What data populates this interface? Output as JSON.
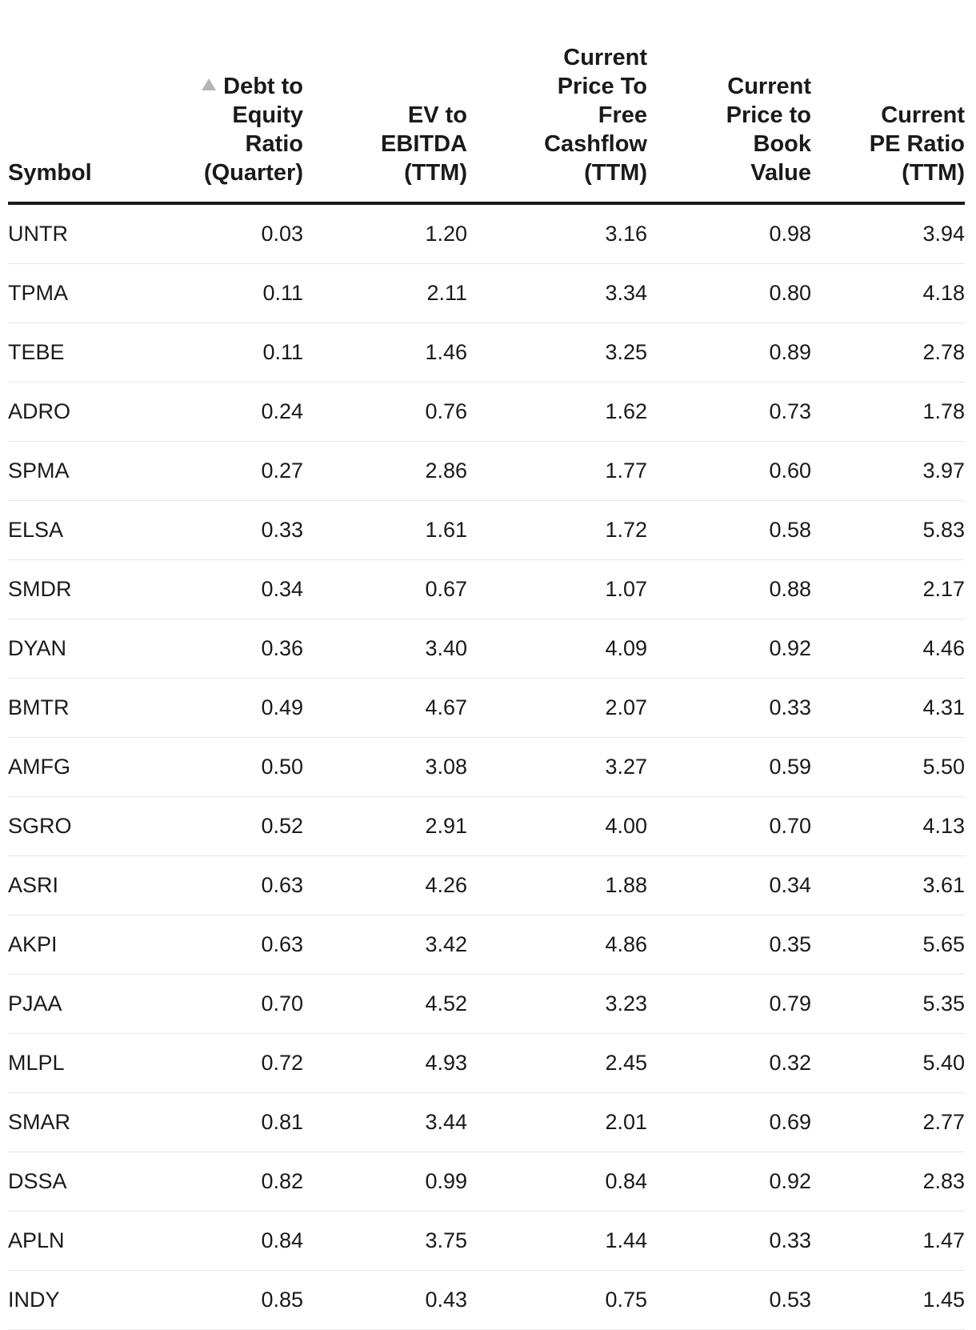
{
  "table": {
    "sort": {
      "column": "debt_to_equity",
      "direction": "ascending",
      "icon": "sort-ascending-icon"
    },
    "headers": {
      "symbol": "Symbol",
      "debt_to_equity": [
        "Debt to",
        "Equity",
        "Ratio",
        "(Quarter)"
      ],
      "ev_to_ebitda": [
        "EV to",
        "EBITDA",
        "(TTM)"
      ],
      "price_to_fcf": [
        "Current",
        "Price To",
        "Free",
        "Cashflow",
        "(TTM)"
      ],
      "price_to_book": [
        "Current",
        "Price to",
        "Book",
        "Value"
      ],
      "pe_ratio": [
        "Current",
        "PE Ratio",
        "(TTM)"
      ]
    },
    "rows": [
      {
        "symbol": "UNTR",
        "debt_to_equity": "0.03",
        "ev_to_ebitda": "1.20",
        "price_to_fcf": "3.16",
        "price_to_book": "0.98",
        "pe_ratio": "3.94"
      },
      {
        "symbol": "TPMA",
        "debt_to_equity": "0.11",
        "ev_to_ebitda": "2.11",
        "price_to_fcf": "3.34",
        "price_to_book": "0.80",
        "pe_ratio": "4.18"
      },
      {
        "symbol": "TEBE",
        "debt_to_equity": "0.11",
        "ev_to_ebitda": "1.46",
        "price_to_fcf": "3.25",
        "price_to_book": "0.89",
        "pe_ratio": "2.78"
      },
      {
        "symbol": "ADRO",
        "debt_to_equity": "0.24",
        "ev_to_ebitda": "0.76",
        "price_to_fcf": "1.62",
        "price_to_book": "0.73",
        "pe_ratio": "1.78"
      },
      {
        "symbol": "SPMA",
        "debt_to_equity": "0.27",
        "ev_to_ebitda": "2.86",
        "price_to_fcf": "1.77",
        "price_to_book": "0.60",
        "pe_ratio": "3.97"
      },
      {
        "symbol": "ELSA",
        "debt_to_equity": "0.33",
        "ev_to_ebitda": "1.61",
        "price_to_fcf": "1.72",
        "price_to_book": "0.58",
        "pe_ratio": "5.83"
      },
      {
        "symbol": "SMDR",
        "debt_to_equity": "0.34",
        "ev_to_ebitda": "0.67",
        "price_to_fcf": "1.07",
        "price_to_book": "0.88",
        "pe_ratio": "2.17"
      },
      {
        "symbol": "DYAN",
        "debt_to_equity": "0.36",
        "ev_to_ebitda": "3.40",
        "price_to_fcf": "4.09",
        "price_to_book": "0.92",
        "pe_ratio": "4.46"
      },
      {
        "symbol": "BMTR",
        "debt_to_equity": "0.49",
        "ev_to_ebitda": "4.67",
        "price_to_fcf": "2.07",
        "price_to_book": "0.33",
        "pe_ratio": "4.31"
      },
      {
        "symbol": "AMFG",
        "debt_to_equity": "0.50",
        "ev_to_ebitda": "3.08",
        "price_to_fcf": "3.27",
        "price_to_book": "0.59",
        "pe_ratio": "5.50"
      },
      {
        "symbol": "SGRO",
        "debt_to_equity": "0.52",
        "ev_to_ebitda": "2.91",
        "price_to_fcf": "4.00",
        "price_to_book": "0.70",
        "pe_ratio": "4.13"
      },
      {
        "symbol": "ASRI",
        "debt_to_equity": "0.63",
        "ev_to_ebitda": "4.26",
        "price_to_fcf": "1.88",
        "price_to_book": "0.34",
        "pe_ratio": "3.61"
      },
      {
        "symbol": "AKPI",
        "debt_to_equity": "0.63",
        "ev_to_ebitda": "3.42",
        "price_to_fcf": "4.86",
        "price_to_book": "0.35",
        "pe_ratio": "5.65"
      },
      {
        "symbol": "PJAA",
        "debt_to_equity": "0.70",
        "ev_to_ebitda": "4.52",
        "price_to_fcf": "3.23",
        "price_to_book": "0.79",
        "pe_ratio": "5.35"
      },
      {
        "symbol": "MLPL",
        "debt_to_equity": "0.72",
        "ev_to_ebitda": "4.93",
        "price_to_fcf": "2.45",
        "price_to_book": "0.32",
        "pe_ratio": "5.40"
      },
      {
        "symbol": "SMAR",
        "debt_to_equity": "0.81",
        "ev_to_ebitda": "3.44",
        "price_to_fcf": "2.01",
        "price_to_book": "0.69",
        "pe_ratio": "2.77"
      },
      {
        "symbol": "DSSA",
        "debt_to_equity": "0.82",
        "ev_to_ebitda": "0.99",
        "price_to_fcf": "0.84",
        "price_to_book": "0.92",
        "pe_ratio": "2.83"
      },
      {
        "symbol": "APLN",
        "debt_to_equity": "0.84",
        "ev_to_ebitda": "3.75",
        "price_to_fcf": "1.44",
        "price_to_book": "0.33",
        "pe_ratio": "1.47"
      },
      {
        "symbol": "INDY",
        "debt_to_equity": "0.85",
        "ev_to_ebitda": "0.43",
        "price_to_fcf": "0.75",
        "price_to_book": "0.53",
        "pe_ratio": "1.45"
      }
    ]
  }
}
